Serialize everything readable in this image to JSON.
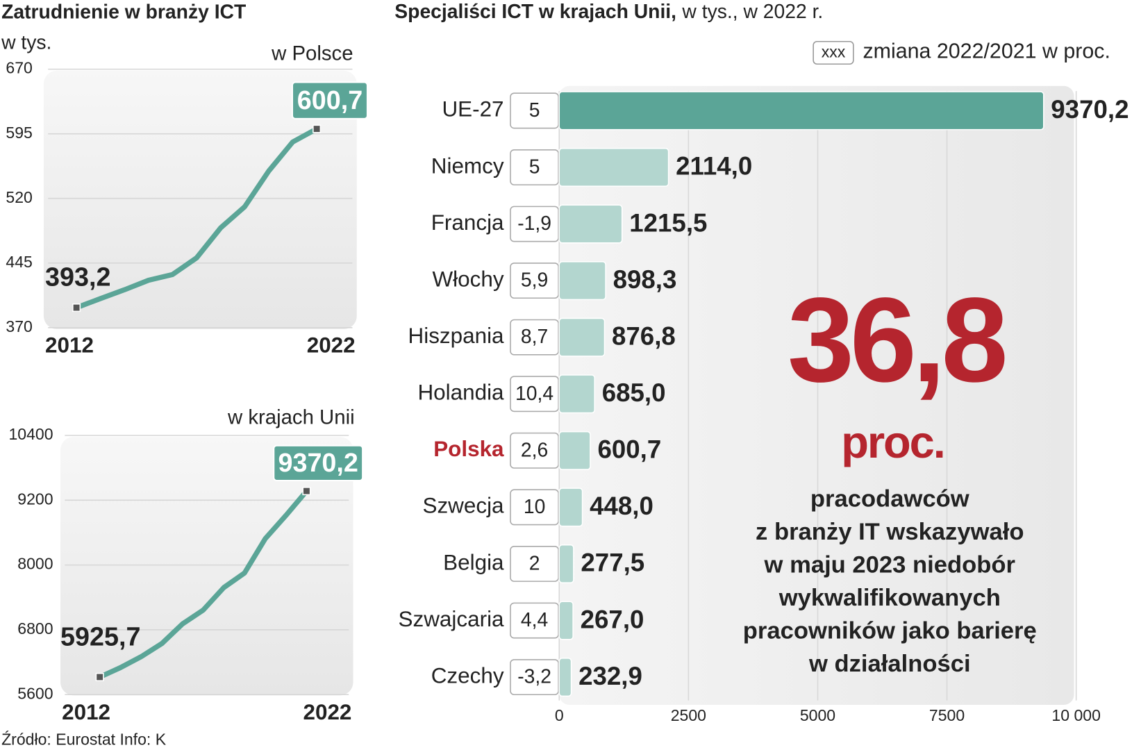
{
  "chart_data": [
    {
      "type": "line",
      "title": "Zatrudnienie w branży ICT",
      "subtitle": "w tys.",
      "label": "w Polsce",
      "categories": [
        "2012",
        null,
        null,
        null,
        null,
        null,
        null,
        null,
        null,
        null,
        "2022"
      ],
      "values": [
        393.2,
        403.8,
        414,
        425,
        431.7,
        451,
        485.8,
        510.3,
        551.7,
        585.5,
        600.7
      ],
      "value_labels": [
        "393,2",
        null,
        null,
        null,
        null,
        null,
        null,
        null,
        null,
        null,
        "600,7"
      ],
      "color": "#5ba597",
      "ylim": [
        370,
        670
      ],
      "yticks": [
        370,
        445,
        520,
        595,
        670
      ],
      "grid": true
    },
    {
      "type": "line",
      "label": "w krajach Unii",
      "categories": [
        "2012",
        null,
        null,
        null,
        null,
        null,
        null,
        null,
        null,
        null,
        "2022"
      ],
      "values": [
        5925.7,
        6100,
        6302,
        6545,
        6909,
        7165,
        7583,
        7852,
        8486,
        8917,
        9370.2
      ],
      "value_labels": [
        "5925,7",
        null,
        null,
        null,
        null,
        null,
        null,
        null,
        null,
        null,
        "9370,2"
      ],
      "color": "#5ba597",
      "ylim": [
        5600,
        10400
      ],
      "yticks": [
        5600,
        6800,
        8000,
        9200,
        10400
      ],
      "grid": true
    },
    {
      "type": "hbar",
      "title": "Specjaliści ICT w krajach Unii,",
      "subtitle": "w tys., w 2022 r.",
      "legend": {
        "marker": "xxx",
        "label": "zmiana 2022/2021  w proc."
      },
      "categories": [
        "UE-27",
        "Niemcy",
        "Francja",
        "Włochy",
        "Hiszpania",
        "Holandia",
        "Polska",
        "Szwecja",
        "Belgia",
        "Szwajcaria",
        "Czechy"
      ],
      "values": [
        9370.2,
        2114.0,
        1215.5,
        898.3,
        876.8,
        685.0,
        600.7,
        448.0,
        277.5,
        267.0,
        232.9
      ],
      "value_labels": [
        "9370,2",
        "2114,0",
        "1215,5",
        "898,3",
        "876,8",
        "685,0",
        "600,7",
        "448,0",
        "277,5",
        "267,0",
        "232,9"
      ],
      "changes": [
        5,
        5,
        -1.9,
        5.9,
        8.7,
        10.4,
        2.6,
        10,
        2,
        4.4,
        -3.2
      ],
      "change_labels": [
        "5",
        "5",
        "-1,9",
        "5,9",
        "8,7",
        "10,4",
        "2,6",
        "10",
        "2",
        "4,4",
        "-3,2"
      ],
      "colors": [
        "#5ba597",
        "#b3d6cf",
        "#b3d6cf",
        "#b3d6cf",
        "#b3d6cf",
        "#b3d6cf",
        "#b3d6cf",
        "#b3d6cf",
        "#b3d6cf",
        "#b3d6cf",
        "#b3d6cf"
      ],
      "label_colors": [
        "#222",
        "#222",
        "#222",
        "#222",
        "#222",
        "#222",
        "#b5252e",
        "#222",
        "#222",
        "#222",
        "#222"
      ],
      "xlim": [
        0,
        10000
      ],
      "xticks": [
        0,
        2500,
        5000,
        7500,
        {
          "value": 10000,
          "label": "10 000"
        }
      ],
      "grid": true,
      "annotation": {
        "big": "36,8",
        "unit": "proc.",
        "color": "#b5252e",
        "lines": [
          "pracodawców",
          "z branży IT wskazywało",
          "w maju 2023 niedobór",
          "wykwalifikowanych",
          "pracowników jako barierę",
          "w  działalności"
        ]
      }
    }
  ],
  "source": "Źródło: Eurostat Info: K"
}
